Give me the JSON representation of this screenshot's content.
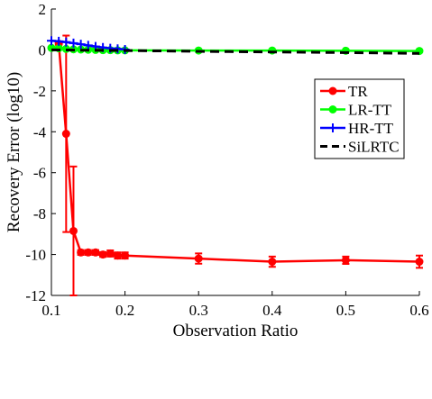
{
  "chart_data": {
    "type": "line",
    "title": "",
    "xlabel": "Observation Ratio",
    "ylabel": "Recovery Error (log10)",
    "xlim": [
      0.1,
      0.6
    ],
    "ylim": [
      -12,
      2
    ],
    "xticks": [
      0.1,
      0.2,
      0.3,
      0.4,
      0.5,
      0.6
    ],
    "xtick_labels": [
      "0.1",
      "0.2",
      "0.3",
      "0.4",
      "0.5",
      "0.6"
    ],
    "yticks": [
      2,
      0,
      -2,
      -4,
      -6,
      -8,
      -10,
      -12
    ],
    "ytick_labels": [
      "2",
      "0",
      "-2",
      "-4",
      "-6",
      "-8",
      "-10",
      "-12"
    ],
    "grid": false,
    "legend_position": "right",
    "series": [
      {
        "name": "TR",
        "color": "#ff0000",
        "marker": "circle",
        "dash": "solid",
        "x": [
          0.11,
          0.12,
          0.13,
          0.14,
          0.15,
          0.16,
          0.17,
          0.18,
          0.19,
          0.2,
          0.3,
          0.4,
          0.5,
          0.6
        ],
        "y": [
          0.3,
          -4.1,
          -8.85,
          -9.9,
          -9.9,
          -9.9,
          -10.0,
          -9.95,
          -10.05,
          -10.05,
          -10.2,
          -10.35,
          -10.28,
          -10.35
        ],
        "err": [
          0.0,
          4.8,
          3.15,
          0.12,
          0.12,
          0.12,
          0.12,
          0.15,
          0.15,
          0.15,
          0.25,
          0.25,
          0.18,
          0.3
        ]
      },
      {
        "name": "LR-TT",
        "color": "#00ff00",
        "marker": "circle",
        "dash": "solid",
        "x": [
          0.1,
          0.11,
          0.12,
          0.13,
          0.14,
          0.15,
          0.16,
          0.17,
          0.18,
          0.19,
          0.2,
          0.3,
          0.4,
          0.5,
          0.6
        ],
        "y": [
          0.1,
          0.08,
          0.05,
          0.03,
          0.02,
          0.01,
          0.0,
          -0.01,
          -0.01,
          -0.02,
          -0.02,
          -0.03,
          -0.03,
          -0.04,
          -0.05
        ],
        "err": []
      },
      {
        "name": "HR-TT",
        "color": "#0000ff",
        "marker": "plus",
        "dash": "solid",
        "x": [
          0.1,
          0.11,
          0.12,
          0.13,
          0.14,
          0.15,
          0.16,
          0.17,
          0.18,
          0.19,
          0.2
        ],
        "y": [
          0.45,
          0.42,
          0.38,
          0.33,
          0.28,
          0.22,
          0.17,
          0.12,
          0.08,
          0.05,
          0.02
        ],
        "err": []
      },
      {
        "name": "SiLRTC",
        "color": "#000000",
        "marker": "none",
        "dash": "dashed",
        "x": [
          0.1,
          0.2,
          0.3,
          0.4,
          0.5,
          0.6
        ],
        "y": [
          0.0,
          -0.03,
          -0.07,
          -0.1,
          -0.13,
          -0.17
        ],
        "err": []
      }
    ]
  }
}
